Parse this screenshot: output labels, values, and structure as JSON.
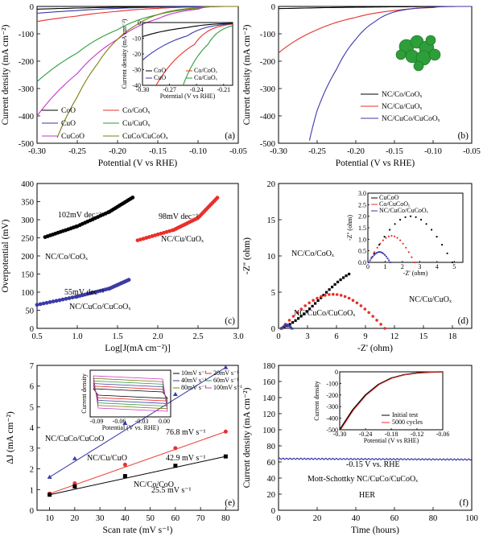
{
  "colors": {
    "black": "#000000",
    "red": "#e8302a",
    "blue": "#3a3aa8",
    "purple": "#cc33cc",
    "green": "#2e9e3a",
    "olive": "#7c7c10",
    "gray": "#888888"
  },
  "chart_data": [
    {
      "panel": "(a)",
      "type": "line",
      "xlabel": "Potential (V vs RHE)",
      "ylabel": "Current density (mA cm⁻²)",
      "xlim": [
        -0.3,
        -0.05
      ],
      "ylim": [
        -500,
        0
      ],
      "xticks": [
        "-0.30",
        "-0.25",
        "-0.20",
        "-0.15",
        "-0.10",
        "-0.05"
      ],
      "yticks": [
        "-500",
        "-400",
        "-300",
        "-200",
        "-100",
        "0"
      ],
      "series": [
        {
          "name": "CoO",
          "color": "#000000",
          "x": [
            -0.3,
            -0.25,
            -0.2,
            -0.15,
            -0.1,
            -0.05
          ],
          "y": [
            -10,
            -6,
            -3,
            -1.5,
            -0.6,
            0
          ]
        },
        {
          "name": "Co/CoOₓ",
          "color": "#e8302a",
          "x": [
            -0.3,
            -0.25,
            -0.2,
            -0.15,
            -0.1,
            -0.05
          ],
          "y": [
            -55,
            -35,
            -18,
            -7,
            -2,
            0
          ]
        },
        {
          "name": "CuO",
          "color": "#3a3aa8",
          "x": [
            -0.3,
            -0.25,
            -0.2,
            -0.15,
            -0.1,
            -0.05
          ],
          "y": [
            -25,
            -15,
            -7,
            -3,
            -1,
            0
          ]
        },
        {
          "name": "Cu/CuOₓ",
          "color": "#2e9e3a",
          "x": [
            -0.3,
            -0.25,
            -0.2,
            -0.15,
            -0.1,
            -0.05
          ],
          "y": [
            -275,
            -170,
            -85,
            -30,
            -8,
            0
          ]
        },
        {
          "name": "CuCoO",
          "color": "#cc33cc",
          "x": [
            -0.3,
            -0.25,
            -0.2,
            -0.15,
            -0.1,
            -0.05
          ],
          "y": [
            -400,
            -245,
            -120,
            -45,
            -10,
            0
          ]
        },
        {
          "name": "CuCo/CuCoOₓ",
          "color": "#7c7c10",
          "x": [
            -0.275,
            -0.25,
            -0.225,
            -0.2,
            -0.175,
            -0.15,
            -0.1,
            -0.05
          ],
          "y": [
            -480,
            -330,
            -210,
            -120,
            -65,
            -30,
            -5,
            0
          ]
        }
      ],
      "label": "(a)",
      "inset": {
        "xlabel": "Potential (V vs RHE)",
        "ylabel": "Current density (mA cm⁻²)",
        "xlim": [
          -0.3,
          -0.2
        ],
        "ylim": [
          -40,
          0
        ],
        "xticks": [
          "-0.30",
          "-0.27",
          "-0.24",
          "-0.21"
        ],
        "yticks": [
          "-40",
          "-30",
          "-20",
          "-10",
          "0"
        ],
        "legend": [
          "CoO",
          "Co/CoOₓ",
          "CuO",
          "Cu/CuOₓ"
        ]
      }
    },
    {
      "panel": "(b)",
      "type": "line",
      "xlabel": "Potential (V vs RHE)",
      "ylabel": "Current density (mA cm⁻²)",
      "xlim": [
        -0.3,
        -0.05
      ],
      "ylim": [
        -500,
        0
      ],
      "xticks": [
        "-0.30",
        "-0.25",
        "-0.20",
        "-0.15",
        "-0.10",
        "-0.05"
      ],
      "yticks": [
        "-500",
        "-400",
        "-300",
        "-200",
        "-100",
        "0"
      ],
      "series": [
        {
          "name": "NC/Co/CoOₓ",
          "color": "#000000",
          "x": [
            -0.3,
            -0.25,
            -0.2,
            -0.15,
            -0.1,
            -0.05
          ],
          "y": [
            -8,
            -5,
            -3,
            -1.5,
            -0.5,
            0
          ]
        },
        {
          "name": "NC/Cu/CuOₓ",
          "color": "#e8302a",
          "x": [
            -0.3,
            -0.25,
            -0.2,
            -0.15,
            -0.1,
            -0.05
          ],
          "y": [
            -170,
            -85,
            -40,
            -15,
            -4,
            0
          ]
        },
        {
          "name": "NC/CuCo/CuCoOₓ",
          "color": "#3a3aa8",
          "x": [
            -0.26,
            -0.25,
            -0.225,
            -0.2,
            -0.175,
            -0.15,
            -0.1,
            -0.05
          ],
          "y": [
            -490,
            -380,
            -230,
            -120,
            -55,
            -20,
            -3,
            0
          ]
        }
      ],
      "label": "(b)"
    },
    {
      "panel": "(c)",
      "type": "scatter",
      "xlabel": "Log[J(mA cm⁻²)]",
      "ylabel": "Overpotential (mV)",
      "xlim": [
        0.5,
        3.0
      ],
      "ylim": [
        0,
        400
      ],
      "xticks": [
        "0.5",
        "1.0",
        "1.5",
        "2.0",
        "2.5",
        "3.0"
      ],
      "yticks": [
        "0",
        "50",
        "100",
        "150",
        "200",
        "250",
        "300",
        "350",
        "400"
      ],
      "series": [
        {
          "name": "NC/Co/CoOₓ",
          "color": "#000000",
          "x": [
            0.6,
            1.0,
            1.4,
            1.7
          ],
          "y": [
            252,
            282,
            322,
            363
          ]
        },
        {
          "name": "NC/Cu/CuOₓ",
          "color": "#e8302a",
          "x": [
            1.75,
            2.2,
            2.5,
            2.75
          ],
          "y": [
            243,
            272,
            305,
            363
          ]
        },
        {
          "name": "NC/CuCo/CuCoOₓ",
          "color": "#3a3aa8",
          "x": [
            0.5,
            1.0,
            1.4,
            1.65
          ],
          "y": [
            65,
            88,
            110,
            135
          ]
        }
      ],
      "annotations": [
        "102mV dec⁻¹",
        "98mV dec⁻¹",
        "55mV dec⁻¹",
        "NC/Co/CoOₓ",
        "NC/Cu/CuOₓ",
        "NC/CuCo/CuCoOₓ"
      ],
      "label": "(c)"
    },
    {
      "panel": "(d)",
      "type": "scatter",
      "xlabel": "-Z' (ohm)",
      "ylabel": "-Z'' (ohm)",
      "xlim": [
        0,
        20
      ],
      "ylim": [
        0,
        20
      ],
      "xticks": [
        "0",
        "3",
        "6",
        "9",
        "12",
        "15",
        "18"
      ],
      "yticks": [
        "0",
        "5",
        "10",
        "15",
        "20"
      ],
      "series": [
        {
          "name": "NC/Co/CoOₓ",
          "color": "#000000",
          "arc": {
            "start": 0.3,
            "span": 7.0,
            "height": 7.5,
            "open": true
          }
        },
        {
          "name": "NC/Cu/CuOₓ",
          "color": "#e8302a",
          "arc": {
            "start": 0.3,
            "end": 11.0,
            "height": 4.7
          }
        },
        {
          "name": "NC/CuCo/CuCoOₓ",
          "color": "#3a3aa8",
          "arc": {
            "start": 0.3,
            "end": 1.4,
            "height": 0.5
          }
        }
      ],
      "annotations": [
        "NC/Co/CoOₓ",
        "NC/Cu/CuOₓ",
        "NC/CuCo/CuCoOₓ"
      ],
      "label": "(d)",
      "inset": {
        "xlabel": "-Z' (ohm)",
        "ylabel": "-Z'' (ohm)",
        "xlim": [
          0,
          5.5
        ],
        "ylim": [
          0,
          3
        ],
        "xticks": [
          "0",
          "1",
          "2",
          "3",
          "4",
          "5"
        ],
        "yticks": [
          "0.0",
          "0.5",
          "1.0",
          "1.5",
          "2.0",
          "2.5",
          "3.0"
        ],
        "legend": [
          "CuCoO",
          "Co/CuCoOₓ",
          "NC/CuCo/CuCoOₓ"
        ]
      }
    },
    {
      "panel": "(e)",
      "type": "scatter",
      "xlabel": "Scan rate (mV s⁻¹)",
      "ylabel": "ΔJ (mA cm⁻²)",
      "xlim": [
        5,
        85
      ],
      "ylim": [
        0,
        7
      ],
      "xticks": [
        "10",
        "20",
        "30",
        "40",
        "50",
        "60",
        "70",
        "80"
      ],
      "yticks": [
        "0",
        "1",
        "2",
        "3",
        "4",
        "5",
        "6",
        "7"
      ],
      "series": [
        {
          "name": "NC/CuCo/CuCoOₓ",
          "color": "#3a3aa8",
          "marker": "triangle",
          "x": [
            10,
            20,
            40,
            60,
            80
          ],
          "y": [
            1.6,
            2.5,
            4.2,
            5.6,
            6.9
          ]
        },
        {
          "name": "NC/Cu/CuO",
          "color": "#e8302a",
          "marker": "circle",
          "x": [
            10,
            20,
            40,
            60,
            80
          ],
          "y": [
            0.8,
            1.3,
            2.2,
            3.0,
            3.8
          ]
        },
        {
          "name": "NC/Co/CoO",
          "color": "#000000",
          "marker": "square",
          "x": [
            10,
            20,
            40,
            60,
            80
          ],
          "y": [
            0.75,
            1.15,
            1.65,
            2.15,
            2.6
          ]
        }
      ],
      "annotations": [
        "76.8 mV s⁻¹",
        "42.9 mV s⁻¹",
        "25.5 mV s⁻¹",
        "NC/CuCo/CuCoO",
        "NC/Cu/CuO",
        "NC/Co/CoO"
      ],
      "label": "(e)",
      "inset": {
        "xlabel": "Potential (V vs. RHE)",
        "ylabel": "Current density",
        "xticks": [
          "-0.09",
          "-0.06",
          "-0.03",
          "0.00"
        ],
        "legend": [
          "10mV s⁻¹",
          "20mV s⁻¹",
          "40mV s⁻¹",
          "60mV s⁻¹",
          "80mV s⁻¹",
          "100mV s⁻¹"
        ]
      }
    },
    {
      "panel": "(f)",
      "type": "line",
      "xlabel": "Time (hours)",
      "ylabel": "Current density (mA cm⁻²)",
      "xlim": [
        0,
        100
      ],
      "ylim": [
        0,
        180
      ],
      "xticks": [
        "0",
        "20",
        "40",
        "60",
        "80",
        "100"
      ],
      "yticks": [
        "0",
        "20",
        "40",
        "60",
        "80",
        "100",
        "120",
        "140",
        "160",
        "180"
      ],
      "series": [
        {
          "name": "HER",
          "color": "#3a3aa8",
          "x": [
            0,
            100
          ],
          "y": [
            64,
            63
          ]
        }
      ],
      "annotations": [
        "-0.15 V vs. RHE",
        "Mott-Schottky NC/CuCo/CuCoOₓ",
        "HER"
      ],
      "label": "(f)",
      "inset": {
        "xlabel": "Potential (V vs RHE)",
        "ylabel": "Current density",
        "xlim": [
          -0.3,
          -0.06
        ],
        "ylim": [
          -500,
          0
        ],
        "xticks": [
          "-0.30",
          "-0.24",
          "-0.18",
          "-0.12",
          "-0.06"
        ],
        "yticks": [
          "-500",
          "-400",
          "-300",
          "-200",
          "-100",
          "0"
        ],
        "legend": [
          "Initial test",
          "5000 cycles"
        ]
      }
    }
  ]
}
